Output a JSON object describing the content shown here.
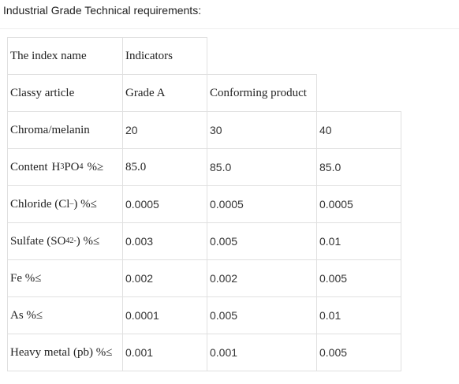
{
  "heading": "Industrial Grade Technical requirements:",
  "table": {
    "header": {
      "index_name": "The index name",
      "indicators": "Indicators"
    },
    "class_row": {
      "label": "Classy article",
      "grade_a": "Grade A",
      "conforming": "Conforming product"
    },
    "rows": [
      {
        "label": "Chroma/melanin",
        "values": [
          "20",
          "30",
          "40"
        ]
      },
      {
        "label_prefix": "Content",
        "formula_h": "H",
        "formula_h_sub": "3",
        "formula_po": "PO",
        "formula_po_sub": "4",
        "label_suffix": "%≥",
        "values": [
          "85.0",
          "85.0",
          "85.0"
        ]
      },
      {
        "label_prefix": "Chloride (Cl",
        "label_sup": "–",
        "label_suffix": ") %≤",
        "values": [
          "0.0005",
          "0.0005",
          "0.0005"
        ]
      },
      {
        "label_prefix": "Sulfate (SO",
        "label_sub": "4",
        "label_sup": "2-",
        "label_suffix": ") %≤",
        "values": [
          "0.003",
          "0.005",
          "0.01"
        ]
      },
      {
        "label": "Fe %≤",
        "values": [
          "0.002",
          "0.002",
          "0.005"
        ]
      },
      {
        "label": "As %≤",
        "values": [
          "0.0001",
          "0.005",
          "0.01"
        ]
      },
      {
        "label": "Heavy metal (pb) %≤",
        "values": [
          "0.001",
          "0.001",
          "0.005"
        ]
      }
    ]
  }
}
